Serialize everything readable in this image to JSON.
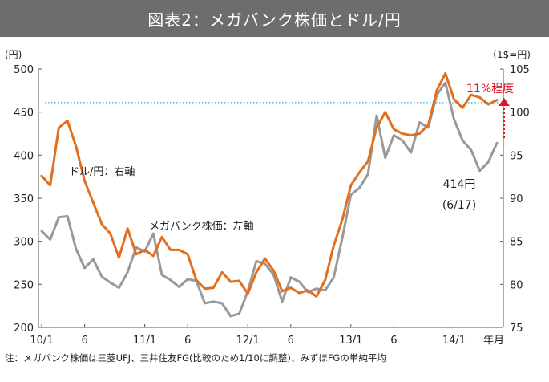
{
  "chart_data": {
    "type": "line",
    "title": "図表2：メガバンク株価とドル/円",
    "left_axis": {
      "unit": "(円)",
      "ylim": [
        200,
        500
      ],
      "ticks": [
        200,
        250,
        300,
        350,
        400,
        450,
        500
      ]
    },
    "right_axis": {
      "unit": "(1$=円)",
      "ylim": [
        75,
        105
      ],
      "ticks": [
        75,
        80,
        85,
        90,
        95,
        100,
        105
      ]
    },
    "x_ticks": [
      "10/1",
      "6",
      "11/1",
      "6",
      "12/1",
      "6",
      "13/1",
      "6",
      "14/1"
    ],
    "x_axis_suffix": "年月",
    "reference_line": {
      "axis": "left",
      "value": 461,
      "color": "#5bc0de"
    },
    "series": [
      {
        "name": "メガバンク株価",
        "axis": "left",
        "color": "#999999",
        "values": [
          312,
          302,
          328,
          329,
          291,
          269,
          279,
          259,
          252,
          246,
          264,
          293,
          288,
          309,
          261,
          255,
          247,
          256,
          254,
          228,
          230,
          228,
          213,
          216,
          242,
          277,
          274,
          261,
          230,
          258,
          253,
          241,
          245,
          243,
          258,
          304,
          354,
          362,
          378,
          446,
          397,
          423,
          417,
          403,
          438,
          432,
          470,
          484,
          442,
          417,
          406,
          382,
          392,
          414
        ]
      },
      {
        "name": "ドル/円",
        "axis": "right",
        "color": "#e07020",
        "values": [
          92.6,
          91.5,
          98.2,
          99.0,
          96.0,
          92.0,
          89.5,
          87.0,
          85.9,
          83.1,
          86.5,
          83.5,
          84.0,
          83.3,
          85.5,
          84.0,
          84.0,
          83.5,
          80.5,
          79.5,
          79.6,
          81.4,
          80.3,
          80.4,
          78.9,
          81.4,
          83.0,
          81.6,
          79.2,
          79.6,
          79.0,
          79.3,
          78.6,
          80.5,
          84.5,
          87.5,
          91.5,
          93.0,
          94.3,
          98.2,
          100.0,
          98.0,
          97.5,
          97.3,
          97.5,
          98.5,
          102.5,
          104.5,
          101.5,
          100.5,
          102.0,
          101.7,
          100.9,
          101.4
        ]
      }
    ],
    "annotations": {
      "usd_label": "ドル/円：右軸",
      "bank_label": "メガバンク株価：左軸",
      "last_value": "414円",
      "last_date": "(6/17)",
      "change_label": "11%程度",
      "change_color": "#e0141e"
    }
  },
  "note": "注：メガバンク株価は三菱UFJ、三井住友FG(比較のため1/10に調整)、みずほFGの単純平均"
}
